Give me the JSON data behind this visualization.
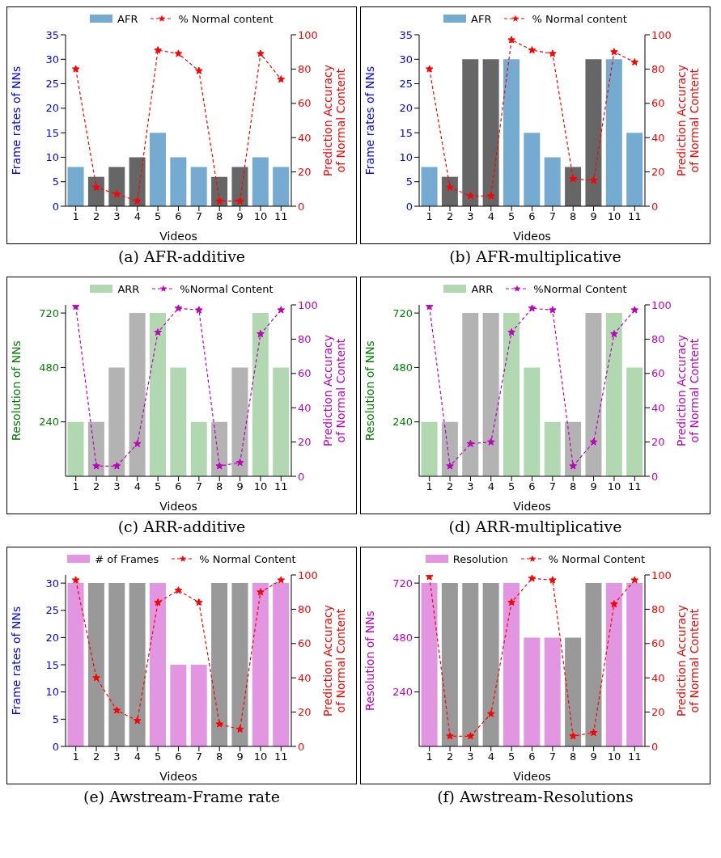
{
  "chart_data": [
    {
      "type": "bar",
      "title": "(a) AFR-additive",
      "xlabel": "Videos",
      "ylabel": "Frame rates of NNs",
      "y2label": "Prediction Accuracy of Normal Content",
      "categories": [
        "1",
        "2",
        "3",
        "4",
        "5",
        "6",
        "7",
        "8",
        "9",
        "10",
        "11"
      ],
      "legend": "top",
      "ylim": [
        0,
        35
      ],
      "yticks": [
        0,
        5,
        10,
        15,
        20,
        25,
        30,
        35
      ],
      "y2lim": [
        0,
        100
      ],
      "y2ticks": [
        0,
        20,
        40,
        60,
        80,
        100
      ],
      "series": [
        {
          "name": "AFR",
          "color": "#75aad1",
          "colors": [
            "#75aad1",
            "#666666",
            "#666666",
            "#666666",
            "#75aad1",
            "#75aad1",
            "#75aad1",
            "#666666",
            "#666666",
            "#75aad1",
            "#75aad1"
          ],
          "values": [
            8,
            6,
            8,
            10,
            15,
            10,
            8,
            6,
            8,
            10,
            8
          ]
        },
        {
          "name": "% Normal content",
          "type": "line",
          "axis": "y2",
          "color": "#ff0000",
          "marker": "star",
          "line_style": "dashed",
          "values": [
            80,
            11,
            7,
            3,
            91,
            89,
            79,
            3,
            3,
            89,
            74
          ]
        }
      ]
    },
    {
      "type": "bar",
      "title": "(b) AFR-multiplicative",
      "xlabel": "Videos",
      "ylabel": "Frame rates of NNs",
      "y2label": "Prediction Accuracy of Normal Content",
      "categories": [
        "1",
        "2",
        "3",
        "4",
        "5",
        "6",
        "7",
        "8",
        "9",
        "10",
        "11"
      ],
      "legend": "top",
      "ylim": [
        0,
        35
      ],
      "yticks": [
        0,
        5,
        10,
        15,
        20,
        25,
        30,
        35
      ],
      "y2lim": [
        0,
        100
      ],
      "y2ticks": [
        0,
        20,
        40,
        60,
        80,
        100
      ],
      "series": [
        {
          "name": "AFR",
          "color": "#75aad1",
          "colors": [
            "#75aad1",
            "#666666",
            "#666666",
            "#666666",
            "#75aad1",
            "#75aad1",
            "#75aad1",
            "#666666",
            "#666666",
            "#75aad1",
            "#75aad1"
          ],
          "values": [
            8,
            6,
            30,
            30,
            30,
            15,
            10,
            8,
            30,
            30,
            15
          ]
        },
        {
          "name": "% Normal content",
          "type": "line",
          "axis": "y2",
          "color": "#ff0000",
          "marker": "star",
          "line_style": "dashed",
          "values": [
            80,
            11,
            6,
            6,
            97,
            91,
            89,
            16,
            15,
            90,
            84
          ]
        }
      ]
    },
    {
      "type": "bar",
      "title": "(c) ARR-additive",
      "xlabel": "Videos",
      "ylabel": "Resolution of NNs",
      "y2label": "Prediction Accuracy of Normal Content",
      "categories": [
        "1",
        "2",
        "3",
        "4",
        "5",
        "6",
        "7",
        "8",
        "9",
        "10",
        "11"
      ],
      "legend": "top",
      "ylim": [
        0,
        756
      ],
      "yticks": [
        240,
        480,
        720
      ],
      "y2lim": [
        0,
        100
      ],
      "y2ticks": [
        0,
        20,
        40,
        60,
        80,
        100
      ],
      "series": [
        {
          "name": "ARR",
          "color": "#b2d8b2",
          "colors": [
            "#b2d8b2",
            "#b3b3b3",
            "#b3b3b3",
            "#b3b3b3",
            "#b2d8b2",
            "#b2d8b2",
            "#b2d8b2",
            "#b3b3b3",
            "#b3b3b3",
            "#b2d8b2",
            "#b2d8b2"
          ],
          "values": [
            240,
            240,
            480,
            720,
            720,
            480,
            240,
            240,
            480,
            720,
            480
          ]
        },
        {
          "name": "%Normal Content",
          "type": "line",
          "axis": "y2",
          "color": "#bf00bf",
          "marker": "star",
          "line_style": "dashed",
          "values": [
            99,
            6,
            6,
            19,
            84,
            98,
            97,
            6,
            8,
            83,
            97
          ]
        }
      ]
    },
    {
      "type": "bar",
      "title": "(d) ARR-multiplicative",
      "xlabel": "Videos",
      "ylabel": "Resolution of NNs",
      "y2label": "Prediction Accuracy of Normal Content",
      "categories": [
        "1",
        "2",
        "3",
        "4",
        "5",
        "6",
        "7",
        "8",
        "9",
        "10",
        "11"
      ],
      "legend": "top",
      "ylim": [
        0,
        756
      ],
      "yticks": [
        240,
        480,
        720
      ],
      "y2lim": [
        0,
        100
      ],
      "y2ticks": [
        0,
        20,
        40,
        60,
        80,
        100
      ],
      "series": [
        {
          "name": "ARR",
          "color": "#b2d8b2",
          "colors": [
            "#b2d8b2",
            "#b3b3b3",
            "#b3b3b3",
            "#b3b3b3",
            "#b2d8b2",
            "#b2d8b2",
            "#b2d8b2",
            "#b3b3b3",
            "#b3b3b3",
            "#b2d8b2",
            "#b2d8b2"
          ],
          "values": [
            240,
            240,
            720,
            720,
            720,
            480,
            240,
            240,
            720,
            720,
            480
          ]
        },
        {
          "name": "%Normal Content",
          "type": "line",
          "axis": "y2",
          "color": "#bf00bf",
          "marker": "star",
          "line_style": "dashed",
          "values": [
            99,
            6,
            19,
            20,
            84,
            98,
            97,
            6,
            20,
            83,
            97
          ]
        }
      ]
    },
    {
      "type": "bar",
      "title": "(e) Awstream-Frame rate",
      "xlabel": "Videos",
      "ylabel": "Frame rates of NNs",
      "y2label": "Prediction Accuracy of Normal Content",
      "categories": [
        "1",
        "2",
        "3",
        "4",
        "5",
        "6",
        "7",
        "8",
        "9",
        "10",
        "11"
      ],
      "legend": "top",
      "ylim": [
        0,
        31.5
      ],
      "yticks": [
        0,
        5,
        10,
        15,
        20,
        25,
        30
      ],
      "y2lim": [
        0,
        100
      ],
      "y2ticks": [
        0,
        20,
        40,
        60,
        80,
        100
      ],
      "series": [
        {
          "name": "# of Frames",
          "color": "#e296e2",
          "colors": [
            "#e296e2",
            "#999999",
            "#999999",
            "#999999",
            "#e296e2",
            "#e296e2",
            "#e296e2",
            "#999999",
            "#999999",
            "#e296e2",
            "#e296e2"
          ],
          "values": [
            30,
            30,
            30,
            30,
            30,
            15,
            15,
            30,
            30,
            30,
            30
          ]
        },
        {
          "name": "% Normal Content",
          "type": "line",
          "axis": "y2",
          "color": "#ff0000",
          "marker": "star",
          "line_style": "dashed",
          "values": [
            97,
            40,
            21,
            15,
            84,
            91,
            84,
            13,
            10,
            90,
            97
          ]
        }
      ]
    },
    {
      "type": "bar",
      "title": "(f) Awstream-Resolutions",
      "xlabel": "Videos",
      "ylabel": "Resolution of NNs",
      "y2label": "Prediction Accuracy of Normal Content",
      "categories": [
        "1",
        "2",
        "3",
        "4",
        "5",
        "6",
        "7",
        "8",
        "9",
        "10",
        "11"
      ],
      "legend": "top",
      "ylim": [
        0,
        756
      ],
      "yticks": [
        240,
        480,
        720
      ],
      "y2lim": [
        0,
        100
      ],
      "y2ticks": [
        0,
        20,
        40,
        60,
        80,
        100
      ],
      "series": [
        {
          "name": "Resolution",
          "color": "#e296e2",
          "colors": [
            "#e296e2",
            "#999999",
            "#999999",
            "#999999",
            "#e296e2",
            "#e296e2",
            "#e296e2",
            "#999999",
            "#999999",
            "#e296e2",
            "#e296e2"
          ],
          "values": [
            720,
            720,
            720,
            720,
            720,
            480,
            480,
            480,
            720,
            720,
            720
          ]
        },
        {
          "name": "% Normal Content",
          "type": "line",
          "axis": "y2",
          "color": "#ff0000",
          "marker": "star",
          "line_style": "dashed",
          "values": [
            99,
            6,
            6,
            19,
            84,
            98,
            97,
            6,
            8,
            83,
            97
          ]
        }
      ]
    }
  ]
}
